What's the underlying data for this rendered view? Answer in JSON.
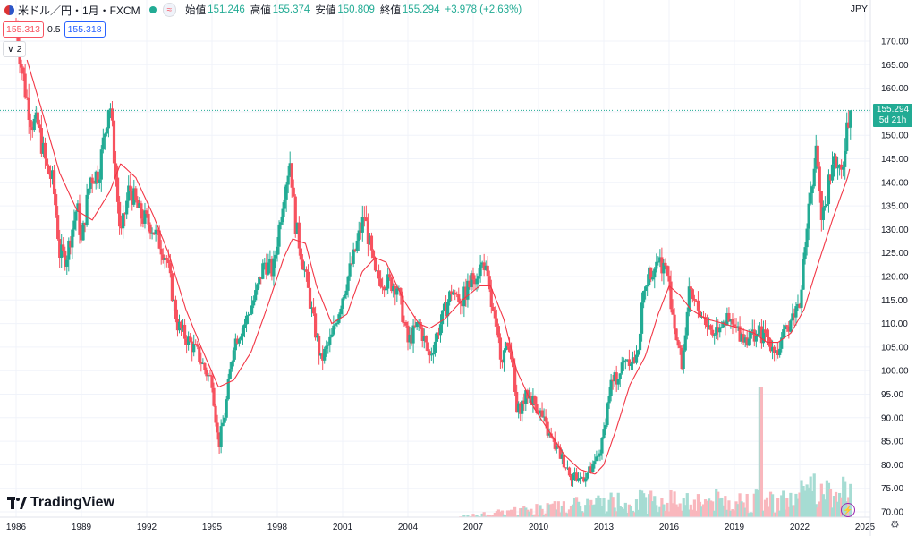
{
  "header": {
    "symbol": "米ドル／円・1月・FXCM",
    "approx_icon": "≈",
    "open_label": "始値",
    "open": "151.246",
    "high_label": "高値",
    "high": "155.374",
    "low_label": "安値",
    "low": "150.809",
    "close_label": "終値",
    "close": "155.294",
    "change": "+3.978 (+2.63%)"
  },
  "bid_box": "155.313",
  "spread": "0.5",
  "ask_box": "155.318",
  "indicator_collapse": "2",
  "currency": "JPY",
  "price_tag": {
    "price": "155.294",
    "countdown": "5d 21h"
  },
  "logo_text": "TradingView",
  "colors": {
    "up": "#22ab94",
    "down": "#f7525f",
    "ma": "#f23645",
    "volume_up": "#a6dcd3",
    "volume_down": "#f9b7bd"
  },
  "chart_data": {
    "type": "candlestick",
    "interval": "1M",
    "y_axis": {
      "min": 70,
      "max": 172,
      "ticks": [
        70,
        75,
        80,
        85,
        90,
        95,
        100,
        105,
        110,
        115,
        120,
        125,
        130,
        135,
        140,
        145,
        150,
        155,
        160,
        165,
        170
      ]
    },
    "x_axis": {
      "min": 1986,
      "max": 2025,
      "tick_labels": [
        "1986",
        "1989",
        "1992",
        "1995",
        "1998",
        "2001",
        "2004",
        "2007",
        "2010",
        "2013",
        "2016",
        "2019",
        "2022",
        "2025"
      ]
    },
    "last_price_line": 155.294,
    "series": [
      {
        "name": "",
        "type": "candlestick",
        "anchors": [
          [
            1986.0,
            173
          ],
          [
            1986.4,
            160
          ],
          [
            1986.7,
            153
          ],
          [
            1987.0,
            152
          ],
          [
            1987.4,
            143
          ],
          [
            1987.7,
            140
          ],
          [
            1988.0,
            125
          ],
          [
            1988.3,
            124
          ],
          [
            1988.8,
            135
          ],
          [
            1989.0,
            127
          ],
          [
            1989.4,
            141
          ],
          [
            1989.8,
            142
          ],
          [
            1990.3,
            158
          ],
          [
            1990.8,
            128
          ],
          [
            1991.2,
            139
          ],
          [
            1991.7,
            133
          ],
          [
            1992.2,
            131
          ],
          [
            1992.9,
            124
          ],
          [
            1993.4,
            110
          ],
          [
            1993.8,
            107
          ],
          [
            1994.3,
            104
          ],
          [
            1994.8,
            99
          ],
          [
            1995.0,
            98
          ],
          [
            1995.3,
            84
          ],
          [
            1995.6,
            91
          ],
          [
            1996.0,
            106
          ],
          [
            1996.5,
            110
          ],
          [
            1997.0,
            116
          ],
          [
            1997.4,
            123
          ],
          [
            1997.8,
            121
          ],
          [
            1998.3,
            138
          ],
          [
            1998.6,
            145
          ],
          [
            1998.8,
            132
          ],
          [
            1999.3,
            120
          ],
          [
            1999.6,
            112
          ],
          [
            2000.0,
            102
          ],
          [
            2000.5,
            107
          ],
          [
            2001.0,
            116
          ],
          [
            2001.5,
            124
          ],
          [
            2002.0,
            133
          ],
          [
            2002.5,
            120
          ],
          [
            2003.0,
            119
          ],
          [
            2003.5,
            118
          ],
          [
            2004.0,
            106
          ],
          [
            2004.5,
            110
          ],
          [
            2005.0,
            103
          ],
          [
            2005.5,
            110
          ],
          [
            2006.0,
            117
          ],
          [
            2006.5,
            115
          ],
          [
            2007.0,
            120
          ],
          [
            2007.5,
            123
          ],
          [
            2007.9,
            112
          ],
          [
            2008.3,
            103
          ],
          [
            2008.7,
            106
          ],
          [
            2009.0,
            91
          ],
          [
            2009.5,
            95
          ],
          [
            2010.0,
            92
          ],
          [
            2010.5,
            86
          ],
          [
            2011.0,
            82
          ],
          [
            2011.5,
            78
          ],
          [
            2011.9,
            77
          ],
          [
            2012.5,
            79
          ],
          [
            2012.9,
            84
          ],
          [
            2013.3,
            97
          ],
          [
            2013.7,
            99
          ],
          [
            2014.0,
            103
          ],
          [
            2014.5,
            102
          ],
          [
            2014.9,
            119
          ],
          [
            2015.5,
            124
          ],
          [
            2015.9,
            121
          ],
          [
            2016.3,
            108
          ],
          [
            2016.6,
            101
          ],
          [
            2016.9,
            116
          ],
          [
            2017.5,
            112
          ],
          [
            2018.0,
            108
          ],
          [
            2018.5,
            111
          ],
          [
            2019.0,
            109
          ],
          [
            2019.5,
            107
          ],
          [
            2020.0,
            108
          ],
          [
            2020.5,
            107
          ],
          [
            2021.0,
            104
          ],
          [
            2021.5,
            110
          ],
          [
            2022.0,
            115
          ],
          [
            2022.3,
            130
          ],
          [
            2022.8,
            148
          ],
          [
            2023.0,
            130
          ],
          [
            2023.5,
            145
          ],
          [
            2023.9,
            141
          ],
          [
            2024.3,
            155
          ]
        ]
      },
      {
        "name": "",
        "type": "moving_average",
        "anchors": [
          [
            1986.5,
            166
          ],
          [
            1987.2,
            155
          ],
          [
            1988.0,
            142
          ],
          [
            1988.8,
            134
          ],
          [
            1989.5,
            132
          ],
          [
            1990.3,
            138
          ],
          [
            1990.8,
            144
          ],
          [
            1991.5,
            141
          ],
          [
            1992.3,
            133
          ],
          [
            1993.0,
            125
          ],
          [
            1993.8,
            113
          ],
          [
            1994.5,
            105
          ],
          [
            1995.3,
            96.5
          ],
          [
            1996.0,
            98
          ],
          [
            1996.8,
            104
          ],
          [
            1997.5,
            113
          ],
          [
            1998.3,
            124
          ],
          [
            1998.7,
            128
          ],
          [
            1999.3,
            127
          ],
          [
            1999.8,
            118
          ],
          [
            2000.5,
            110
          ],
          [
            2001.2,
            112
          ],
          [
            2001.9,
            121
          ],
          [
            2002.5,
            124
          ],
          [
            2003.0,
            123
          ],
          [
            2003.8,
            115
          ],
          [
            2004.5,
            110
          ],
          [
            2005.0,
            109
          ],
          [
            2005.7,
            111
          ],
          [
            2006.5,
            115
          ],
          [
            2007.3,
            118
          ],
          [
            2007.8,
            118
          ],
          [
            2008.4,
            111
          ],
          [
            2009.0,
            100
          ],
          [
            2009.8,
            92
          ],
          [
            2010.5,
            87
          ],
          [
            2011.2,
            82
          ],
          [
            2011.9,
            79
          ],
          [
            2012.6,
            78
          ],
          [
            2013.0,
            80
          ],
          [
            2013.6,
            88
          ],
          [
            2014.2,
            97
          ],
          [
            2014.9,
            103
          ],
          [
            2015.5,
            112
          ],
          [
            2016.0,
            118
          ],
          [
            2016.5,
            116
          ],
          [
            2017.0,
            113
          ],
          [
            2017.7,
            111
          ],
          [
            2018.5,
            110
          ],
          [
            2019.2,
            109
          ],
          [
            2019.9,
            108
          ],
          [
            2020.5,
            106
          ],
          [
            2021.0,
            106
          ],
          [
            2021.6,
            108
          ],
          [
            2022.2,
            113
          ],
          [
            2022.8,
            122
          ],
          [
            2023.5,
            132
          ],
          [
            2024.2,
            141
          ],
          [
            2024.3,
            143
          ]
        ]
      }
    ]
  }
}
